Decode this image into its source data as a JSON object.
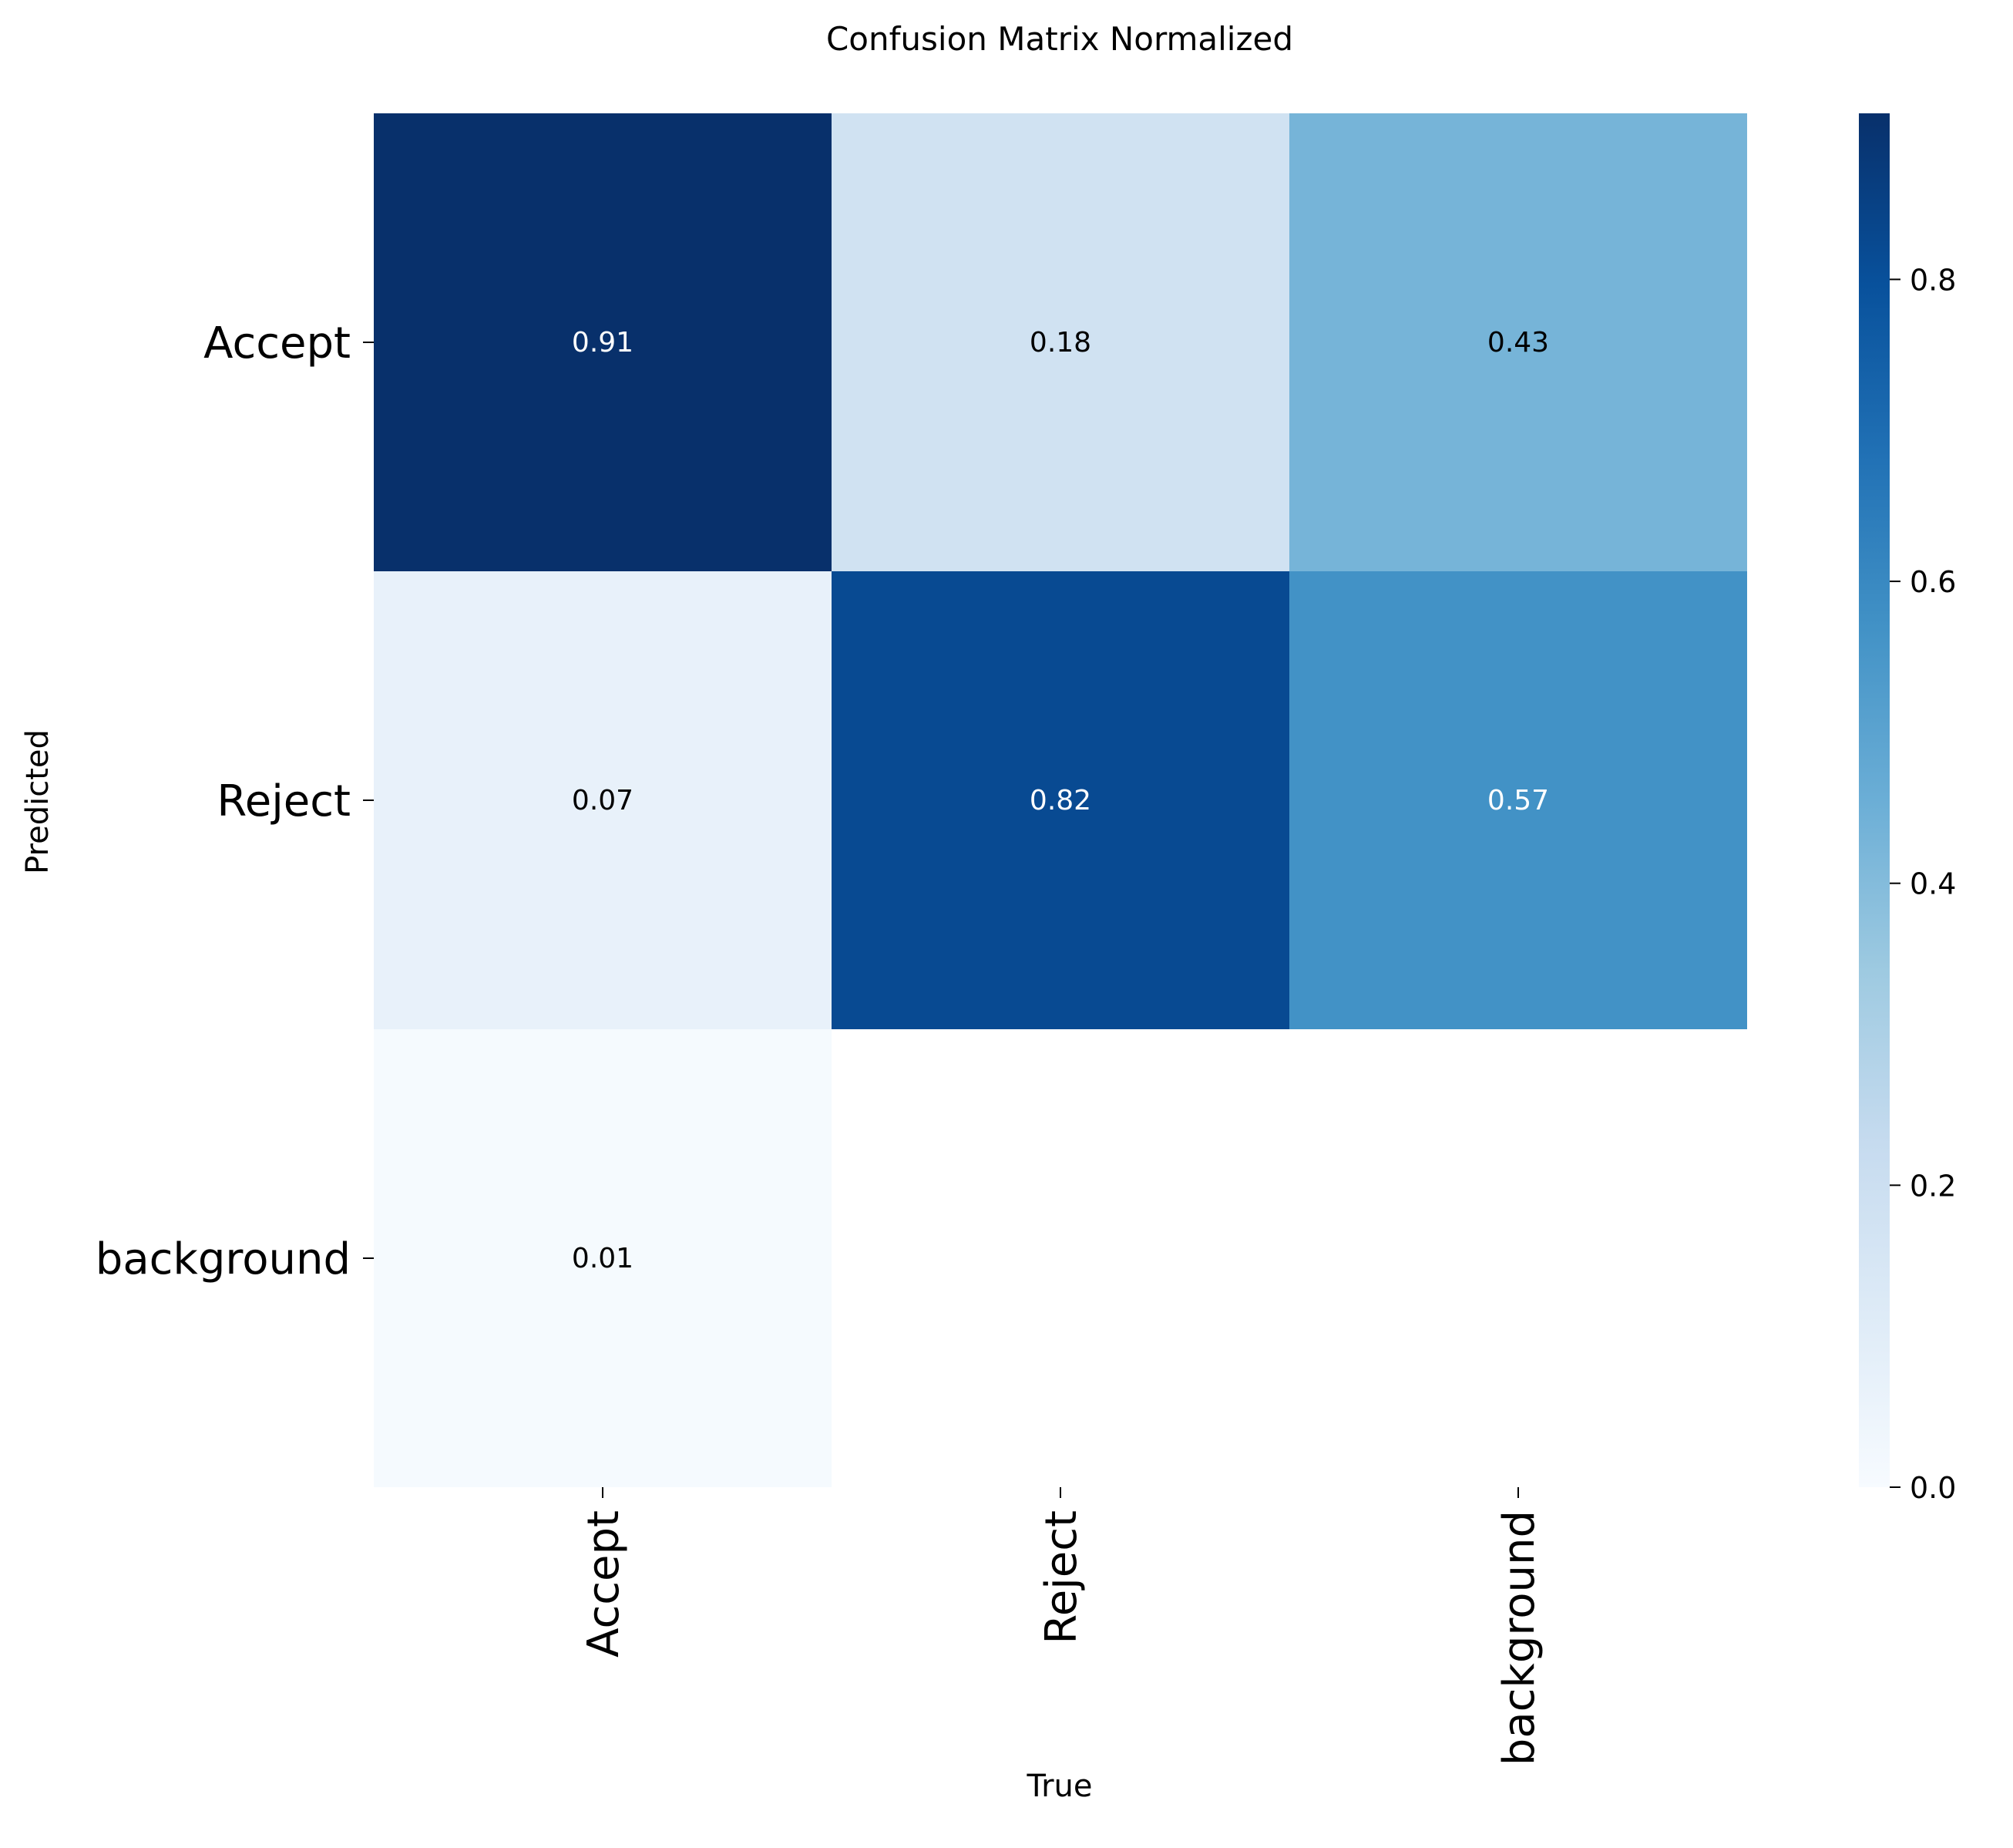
{
  "chart_data": {
    "type": "heatmap",
    "title": "Confusion Matrix Normalized",
    "xlabel": "True",
    "ylabel": "Predicted",
    "x_categories": [
      "Accept",
      "Reject",
      "background"
    ],
    "y_categories": [
      "Accept",
      "Reject",
      "background"
    ],
    "values": [
      [
        0.91,
        0.18,
        0.43
      ],
      [
        0.07,
        0.82,
        0.57
      ],
      [
        0.01,
        null,
        null
      ]
    ],
    "cell_labels": [
      [
        "0.91",
        "0.18",
        "0.43"
      ],
      [
        "0.07",
        "0.82",
        "0.57"
      ],
      [
        "0.01",
        "",
        ""
      ]
    ],
    "colormap": "Blues",
    "color_range": [
      0.0,
      0.91
    ],
    "colorbar_ticks": [
      0.0,
      0.2,
      0.4,
      0.6,
      0.8
    ],
    "colorbar_tick_labels": [
      "0.0",
      "0.2",
      "0.4",
      "0.6",
      "0.8"
    ],
    "text_color_dark": "#000000",
    "text_color_light": "#ffffff"
  }
}
